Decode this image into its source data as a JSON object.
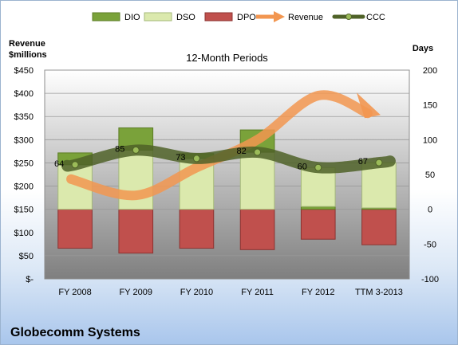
{
  "chart_data": {
    "type": "bar",
    "title": "12-Month Periods",
    "footer_title": "Globecomm Systems",
    "left_axis_label": [
      "Revenue",
      "$millions"
    ],
    "right_axis_label": "Days",
    "categories": [
      "FY 2008",
      "FY 2009",
      "FY 2010",
      "FY 2011",
      "FY 2012",
      "TTM 3-2013"
    ],
    "left_axis": {
      "min": 0,
      "max": 450,
      "step": 50,
      "ticks": [
        "$-",
        "$50",
        "$100",
        "$150",
        "$200",
        "$250",
        "$300",
        "$350",
        "$400",
        "$450"
      ]
    },
    "right_axis": {
      "min": -100,
      "max": 200,
      "step": 50,
      "ticks": [
        "-100",
        "-50",
        "0",
        "50",
        "100",
        "150",
        "200"
      ]
    },
    "legend": {
      "position": "top",
      "items": [
        "DIO",
        "DSO",
        "DPO",
        "Revenue",
        "CCC"
      ]
    },
    "series": [
      {
        "name": "DIO",
        "type": "stacked-bar",
        "axis": "days",
        "color": "#7aa23a",
        "values": [
          -17,
          -32,
          -7,
          -32,
          4,
          2
        ]
      },
      {
        "name": "DSO",
        "type": "stacked-bar",
        "axis": "days",
        "color": "#dbe9ad",
        "values": [
          81,
          117,
          80,
          114,
          56,
          65
        ]
      },
      {
        "name": "DPO",
        "type": "stacked-bar",
        "axis": "days",
        "color": "#c0504d",
        "values": [
          -56,
          -63,
          -56,
          -58,
          -43,
          -51
        ]
      },
      {
        "name": "Revenue",
        "type": "line-arrow",
        "axis": "revenue",
        "color": "#f29650",
        "values": [
          215,
          180,
          240,
          300,
          395,
          350
        ]
      },
      {
        "name": "CCC",
        "type": "line",
        "axis": "days",
        "color": "#4f6228",
        "values": [
          64,
          85,
          73,
          82,
          60,
          67
        ],
        "labels": [
          "64",
          "85",
          "73",
          "82",
          "60",
          "67"
        ]
      }
    ]
  }
}
